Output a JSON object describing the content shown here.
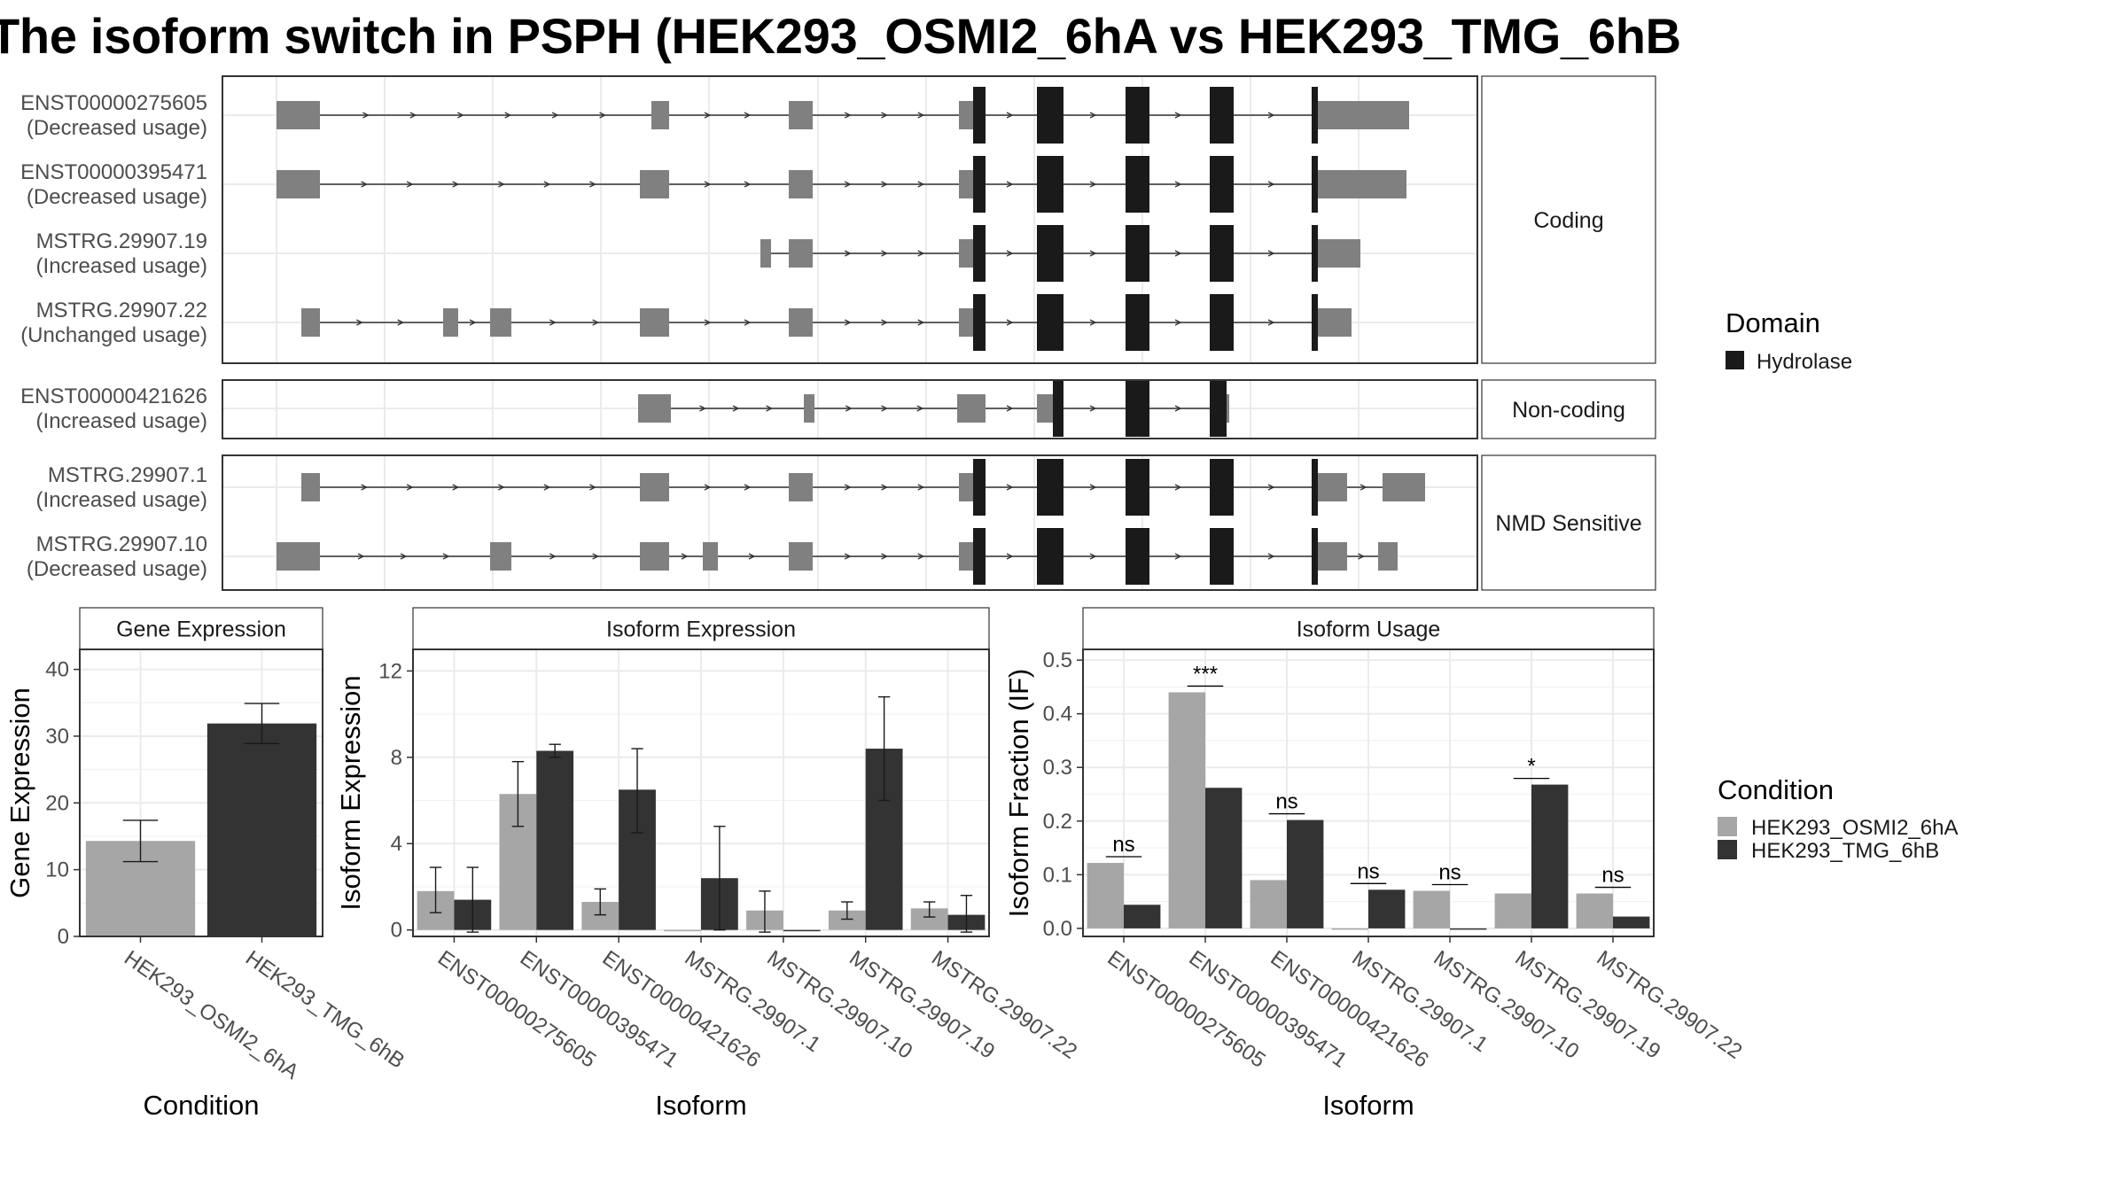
{
  "title": "The isoform switch in PSPH (HEK293_OSMI2_6hA vs HEK293_TMG_6hB",
  "colors": {
    "exon": "#808080",
    "domain": "#1a1a1a",
    "cond_a": "#a6a6a6",
    "cond_b": "#333333",
    "grid": "#ebebeb",
    "border": "#333333"
  },
  "chart_data": [
    {
      "type": "transcript-structure",
      "groups": [
        {
          "label": "Coding",
          "transcripts": [
            {
              "id": "ENST00000275605",
              "usage": "(Decreased usage)"
            },
            {
              "id": "ENST00000395471",
              "usage": "(Decreased usage)"
            },
            {
              "id": "MSTRG.29907.19",
              "usage": "(Increased usage)"
            },
            {
              "id": "MSTRG.29907.22",
              "usage": "(Unchanged usage)"
            }
          ]
        },
        {
          "label": "Non-coding",
          "transcripts": [
            {
              "id": "ENST00000421626",
              "usage": "(Increased usage)"
            }
          ]
        },
        {
          "label": "NMD Sensitive",
          "transcripts": [
            {
              "id": "MSTRG.29907.1",
              "usage": "(Increased usage)"
            },
            {
              "id": "MSTRG.29907.10",
              "usage": "(Decreased usage)"
            }
          ]
        }
      ],
      "legend": {
        "title": "Domain",
        "items": [
          "Hydrolase"
        ]
      }
    },
    {
      "type": "bar",
      "title": "Gene Expression",
      "xlabel": "Condition",
      "ylabel": "Gene Expression",
      "ylim": [
        0,
        43
      ],
      "yticks": [
        0,
        10,
        20,
        30,
        40
      ],
      "categories": [
        "HEK293_OSMI2_6hA",
        "HEK293_TMG_6hB"
      ],
      "values": [
        14.3,
        31.9
      ],
      "errors": [
        [
          11.2,
          17.4
        ],
        [
          28.9,
          34.9
        ]
      ]
    },
    {
      "type": "bar",
      "title": "Isoform Expression",
      "xlabel": "Isoform",
      "ylabel": "Isoform Expression",
      "ylim": [
        -0.3,
        13
      ],
      "yticks": [
        0,
        4,
        8,
        12
      ],
      "categories": [
        "ENST00000275605",
        "ENST00000395471",
        "ENST00000421626",
        "MSTRG.29907.1",
        "MSTRG.29907.10",
        "MSTRG.29907.19",
        "MSTRG.29907.22"
      ],
      "series": [
        {
          "name": "HEK293_OSMI2_6hA",
          "values": [
            1.8,
            6.3,
            1.3,
            0.0,
            0.9,
            0.9,
            1.0
          ],
          "errors": [
            [
              0.8,
              2.9
            ],
            [
              4.8,
              7.8
            ],
            [
              0.7,
              1.9
            ],
            null,
            [
              -0.1,
              1.8
            ],
            [
              0.5,
              1.3
            ],
            [
              0.6,
              1.3
            ]
          ]
        },
        {
          "name": "HEK293_TMG_6hB",
          "values": [
            1.4,
            8.3,
            6.5,
            2.4,
            0.0,
            8.4,
            0.7
          ],
          "errors": [
            [
              -0.1,
              2.9
            ],
            [
              8.0,
              8.6
            ],
            [
              4.5,
              8.4
            ],
            [
              0.0,
              4.8
            ],
            null,
            [
              6.0,
              10.8
            ],
            [
              -0.1,
              1.6
            ]
          ]
        }
      ]
    },
    {
      "type": "bar",
      "title": "Isoform Usage",
      "xlabel": "Isoform",
      "ylabel": "Isoform Fraction (IF)",
      "ylim": [
        -0.015,
        0.52
      ],
      "yticks": [
        0.0,
        0.1,
        0.2,
        0.3,
        0.4,
        0.5
      ],
      "ytick_labels": [
        "0.0",
        "0.1",
        "0.2",
        "0.3",
        "0.4",
        "0.5"
      ],
      "categories": [
        "ENST00000275605",
        "ENST00000395471",
        "ENST00000421626",
        "MSTRG.29907.1",
        "MSTRG.29907.10",
        "MSTRG.29907.19",
        "MSTRG.29907.22"
      ],
      "series": [
        {
          "name": "HEK293_OSMI2_6hA",
          "values": [
            0.122,
            0.44,
            0.09,
            0.0,
            0.07,
            0.065,
            0.065
          ]
        },
        {
          "name": "HEK293_TMG_6hB",
          "values": [
            0.044,
            0.262,
            0.202,
            0.072,
            0.0,
            0.268,
            0.022
          ]
        }
      ],
      "significance": [
        "ns",
        "***",
        "ns",
        "ns",
        "ns",
        "*",
        "ns"
      ],
      "legend": {
        "title": "Condition",
        "items": [
          "HEK293_OSMI2_6hA",
          "HEK293_TMG_6hB"
        ]
      }
    }
  ]
}
